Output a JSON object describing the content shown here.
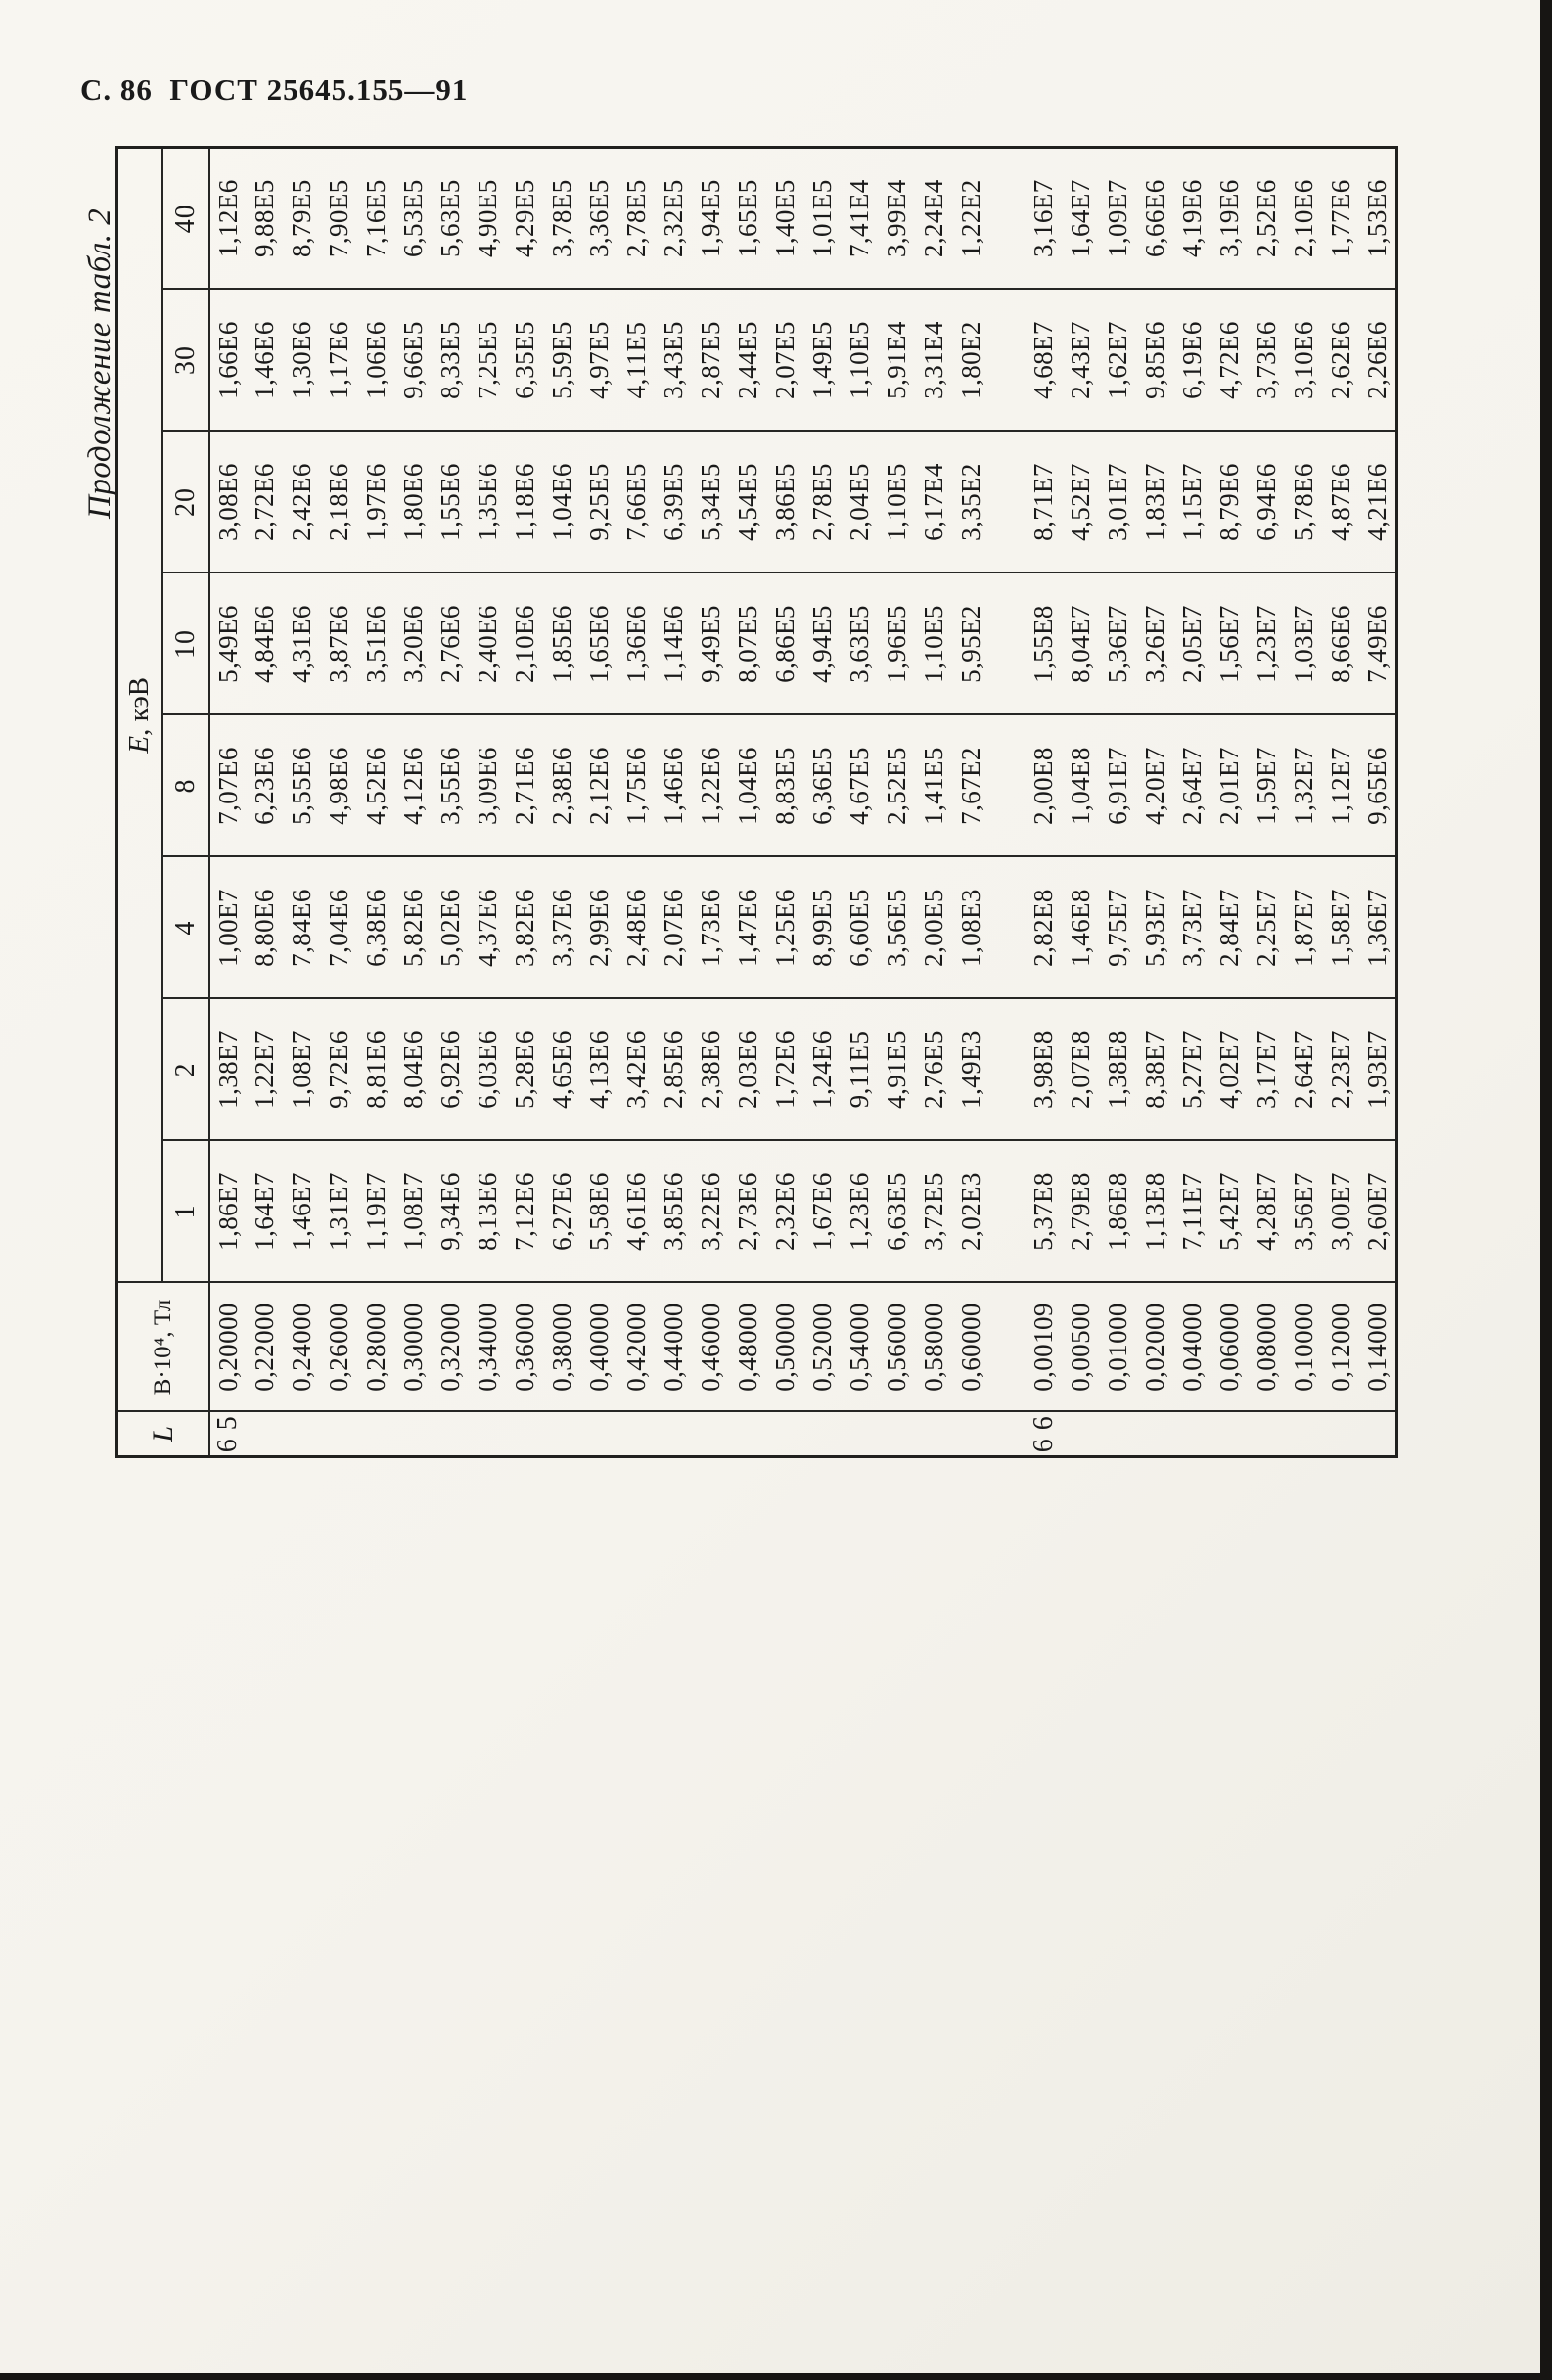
{
  "page": {
    "running_head": "С. 86  ГОСТ 25645.155—91",
    "continuation_note": "Продолжение табл. 2"
  },
  "table": {
    "l_header": "L",
    "b_header": "В·10⁴, Тл",
    "e_symbol": "Е",
    "e_unit": ", кэВ",
    "e_columns": [
      "1",
      "2",
      "4",
      "8",
      "10",
      "20",
      "30",
      "40"
    ],
    "blocks": [
      {
        "l_value": "6 5",
        "rows": [
          {
            "b": "0,20000",
            "values": [
              "1,86E7",
              "1,38E7",
              "1,00E7",
              "7,07E6",
              "5,49E6",
              "3,08E6",
              "1,66E6",
              "1,12E6"
            ]
          },
          {
            "b": "0,22000",
            "values": [
              "1,64E7",
              "1,22E7",
              "8,80E6",
              "6,23E6",
              "4,84E6",
              "2,72E6",
              "1,46E6",
              "9,88E5"
            ]
          },
          {
            "b": "0,24000",
            "values": [
              "1,46E7",
              "1,08E7",
              "7,84E6",
              "5,55E6",
              "4,31E6",
              "2,42E6",
              "1,30E6",
              "8,79E5"
            ]
          },
          {
            "b": "0,26000",
            "values": [
              "1,31E7",
              "9,72E6",
              "7,04E6",
              "4,98E6",
              "3,87E6",
              "2,18E6",
              "1,17E6",
              "7,90E5"
            ]
          },
          {
            "b": "0,28000",
            "values": [
              "1,19E7",
              "8,81E6",
              "6,38E6",
              "4,52E6",
              "3,51E6",
              "1,97E6",
              "1,06E6",
              "7,16E5"
            ]
          },
          {
            "b": "0,30000",
            "values": [
              "1,08E7",
              "8,04E6",
              "5,82E6",
              "4,12E6",
              "3,20E6",
              "1,80E6",
              "9,66E5",
              "6,53E5"
            ]
          },
          {
            "b": "0,32000",
            "values": [
              "9,34E6",
              "6,92E6",
              "5,02E6",
              "3,55E6",
              "2,76E6",
              "1,55E6",
              "8,33E5",
              "5,63E5"
            ]
          },
          {
            "b": "0,34000",
            "values": [
              "8,13E6",
              "6,03E6",
              "4,37E6",
              "3,09E6",
              "2,40E6",
              "1,35E6",
              "7,25E5",
              "4,90E5"
            ]
          },
          {
            "b": "0,36000",
            "values": [
              "7,12E6",
              "5,28E6",
              "3,82E6",
              "2,71E6",
              "2,10E6",
              "1,18E6",
              "6,35E5",
              "4,29E5"
            ]
          },
          {
            "b": "0,38000",
            "values": [
              "6,27E6",
              "4,65E6",
              "3,37E6",
              "2,38E6",
              "1,85E6",
              "1,04E6",
              "5,59E5",
              "3,78E5"
            ]
          },
          {
            "b": "0,40000",
            "values": [
              "5,58E6",
              "4,13E6",
              "2,99E6",
              "2,12E6",
              "1,65E6",
              "9,25E5",
              "4,97E5",
              "3,36E5"
            ]
          },
          {
            "b": "0,42000",
            "values": [
              "4,61E6",
              "3,42E6",
              "2,48E6",
              "1,75E6",
              "1,36E6",
              "7,66E5",
              "4,11E5",
              "2,78E5"
            ]
          },
          {
            "b": "0,44000",
            "values": [
              "3,85E6",
              "2,85E6",
              "2,07E6",
              "1,46E6",
              "1,14E6",
              "6,39E5",
              "3,43E5",
              "2,32E5"
            ]
          },
          {
            "b": "0,46000",
            "values": [
              "3,22E6",
              "2,38E6",
              "1,73E6",
              "1,22E6",
              "9,49E5",
              "5,34E5",
              "2,87E5",
              "1,94E5"
            ]
          },
          {
            "b": "0,48000",
            "values": [
              "2,73E6",
              "2,03E6",
              "1,47E6",
              "1,04E6",
              "8,07E5",
              "4,54E5",
              "2,44E5",
              "1,65E5"
            ]
          },
          {
            "b": "0,50000",
            "values": [
              "2,32E6",
              "1,72E6",
              "1,25E6",
              "8,83E5",
              "6,86E5",
              "3,86E5",
              "2,07E5",
              "1,40E5"
            ]
          },
          {
            "b": "0,52000",
            "values": [
              "1,67E6",
              "1,24E6",
              "8,99E5",
              "6,36E5",
              "4,94E5",
              "2,78E5",
              "1,49E5",
              "1,01E5"
            ]
          },
          {
            "b": "0,54000",
            "values": [
              "1,23E6",
              "9,11E5",
              "6,60E5",
              "4,67E5",
              "3,63E5",
              "2,04E5",
              "1,10E5",
              "7,41E4"
            ]
          },
          {
            "b": "0,56000",
            "values": [
              "6,63E5",
              "4,91E5",
              "3,56E5",
              "2,52E5",
              "1,96E5",
              "1,10E5",
              "5,91E4",
              "3,99E4"
            ]
          },
          {
            "b": "0,58000",
            "values": [
              "3,72E5",
              "2,76E5",
              "2,00E5",
              "1,41E5",
              "1,10E5",
              "6,17E4",
              "3,31E4",
              "2,24E4"
            ]
          },
          {
            "b": "0,60000",
            "values": [
              "2,02E3",
              "1,49E3",
              "1,08E3",
              "7,67E2",
              "5,95E2",
              "3,35E2",
              "1,80E2",
              "1,22E2"
            ]
          }
        ]
      },
      {
        "l_value": "6 6",
        "rows": [
          {
            "b": "0,00109",
            "values": [
              "5,37E8",
              "3,98E8",
              "2,82E8",
              "2,00E8",
              "1,55E8",
              "8,71E7",
              "4,68E7",
              "3,16E7"
            ]
          },
          {
            "b": "0,00500",
            "values": [
              "2,79E8",
              "2,07E8",
              "1,46E8",
              "1,04E8",
              "8,04E7",
              "4,52E7",
              "2,43E7",
              "1,64E7"
            ]
          },
          {
            "b": "0,01000",
            "values": [
              "1,86E8",
              "1,38E8",
              "9,75E7",
              "6,91E7",
              "5,36E7",
              "3,01E7",
              "1,62E7",
              "1,09E7"
            ]
          },
          {
            "b": "0,02000",
            "values": [
              "1,13E8",
              "8,38E7",
              "5,93E7",
              "4,20E7",
              "3,26E7",
              "1,83E7",
              "9,85E6",
              "6,66E6"
            ]
          },
          {
            "b": "0,04000",
            "values": [
              "7,11E7",
              "5,27E7",
              "3,73E7",
              "2,64E7",
              "2,05E7",
              "1,15E7",
              "6,19E6",
              "4,19E6"
            ]
          },
          {
            "b": "0,06000",
            "values": [
              "5,42E7",
              "4,02E7",
              "2,84E7",
              "2,01E7",
              "1,56E7",
              "8,79E6",
              "4,72E6",
              "3,19E6"
            ]
          },
          {
            "b": "0,08000",
            "values": [
              "4,28E7",
              "3,17E7",
              "2,25E7",
              "1,59E7",
              "1,23E7",
              "6,94E6",
              "3,73E6",
              "2,52E6"
            ]
          },
          {
            "b": "0,10000",
            "values": [
              "3,56E7",
              "2,64E7",
              "1,87E7",
              "1,32E7",
              "1,03E7",
              "5,78E6",
              "3,10E6",
              "2,10E6"
            ]
          },
          {
            "b": "0,12000",
            "values": [
              "3,00E7",
              "2,23E7",
              "1,58E7",
              "1,12E7",
              "8,66E6",
              "4,87E6",
              "2,62E6",
              "1,77E6"
            ]
          },
          {
            "b": "0,14000",
            "values": [
              "2,60E7",
              "1,93E7",
              "1,36E7",
              "9,65E6",
              "7,49E6",
              "4,21E6",
              "2,26E6",
              "1,53E6"
            ]
          }
        ]
      }
    ]
  }
}
